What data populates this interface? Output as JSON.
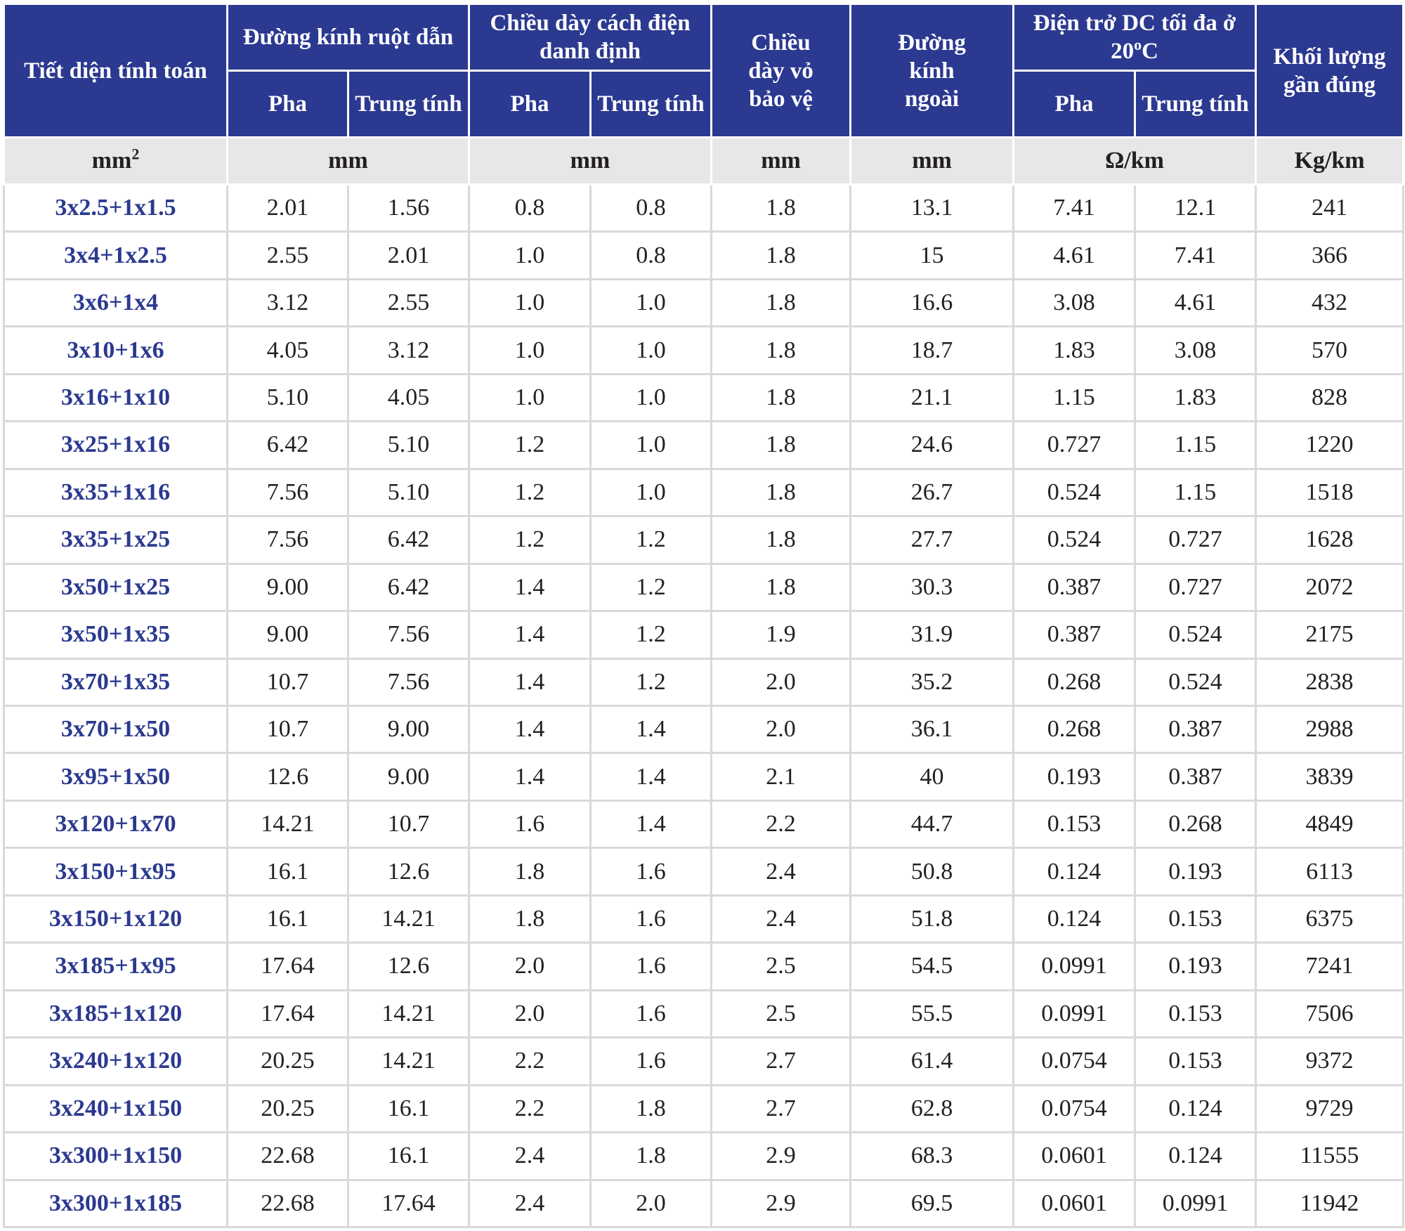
{
  "header": {
    "cross_section": "Tiết diện tính toán",
    "conductor_diameter": "Đường kính ruột dẫn",
    "insulation_thickness": "Chiều dày cách điện danh định",
    "sheath_thickness": "Chiều dày vỏ bảo vệ",
    "outer_diameter": "Đường kính ngoài",
    "dc_resistance_prefix": "Điện trở DC tối đa ở 20",
    "dc_resistance_sup": "o",
    "dc_resistance_suffix": "C",
    "approx_weight": "Khối lượng gần đúng",
    "phase": "Pha",
    "neutral": "Trung tính"
  },
  "units": {
    "cross_section_base": "mm",
    "cross_section_sup": "2",
    "conductor_diameter": "mm",
    "insulation_thickness": "mm",
    "sheath_thickness": "mm",
    "outer_diameter": "mm",
    "dc_resistance": "Ω/km",
    "approx_weight": "Kg/km"
  },
  "rows": [
    [
      "3x2.5+1x1.5",
      "2.01",
      "1.56",
      "0.8",
      "0.8",
      "1.8",
      "13.1",
      "7.41",
      "12.1",
      "241"
    ],
    [
      "3x4+1x2.5",
      "2.55",
      "2.01",
      "1.0",
      "0.8",
      "1.8",
      "15",
      "4.61",
      "7.41",
      "366"
    ],
    [
      "3x6+1x4",
      "3.12",
      "2.55",
      "1.0",
      "1.0",
      "1.8",
      "16.6",
      "3.08",
      "4.61",
      "432"
    ],
    [
      "3x10+1x6",
      "4.05",
      "3.12",
      "1.0",
      "1.0",
      "1.8",
      "18.7",
      "1.83",
      "3.08",
      "570"
    ],
    [
      "3x16+1x10",
      "5.10",
      "4.05",
      "1.0",
      "1.0",
      "1.8",
      "21.1",
      "1.15",
      "1.83",
      "828"
    ],
    [
      "3x25+1x16",
      "6.42",
      "5.10",
      "1.2",
      "1.0",
      "1.8",
      "24.6",
      "0.727",
      "1.15",
      "1220"
    ],
    [
      "3x35+1x16",
      "7.56",
      "5.10",
      "1.2",
      "1.0",
      "1.8",
      "26.7",
      "0.524",
      "1.15",
      "1518"
    ],
    [
      "3x35+1x25",
      "7.56",
      "6.42",
      "1.2",
      "1.2",
      "1.8",
      "27.7",
      "0.524",
      "0.727",
      "1628"
    ],
    [
      "3x50+1x25",
      "9.00",
      "6.42",
      "1.4",
      "1.2",
      "1.8",
      "30.3",
      "0.387",
      "0.727",
      "2072"
    ],
    [
      "3x50+1x35",
      "9.00",
      "7.56",
      "1.4",
      "1.2",
      "1.9",
      "31.9",
      "0.387",
      "0.524",
      "2175"
    ],
    [
      "3x70+1x35",
      "10.7",
      "7.56",
      "1.4",
      "1.2",
      "2.0",
      "35.2",
      "0.268",
      "0.524",
      "2838"
    ],
    [
      "3x70+1x50",
      "10.7",
      "9.00",
      "1.4",
      "1.4",
      "2.0",
      "36.1",
      "0.268",
      "0.387",
      "2988"
    ],
    [
      "3x95+1x50",
      "12.6",
      "9.00",
      "1.4",
      "1.4",
      "2.1",
      "40",
      "0.193",
      "0.387",
      "3839"
    ],
    [
      "3x120+1x70",
      "14.21",
      "10.7",
      "1.6",
      "1.4",
      "2.2",
      "44.7",
      "0.153",
      "0.268",
      "4849"
    ],
    [
      "3x150+1x95",
      "16.1",
      "12.6",
      "1.8",
      "1.6",
      "2.4",
      "50.8",
      "0.124",
      "0.193",
      "6113"
    ],
    [
      "3x150+1x120",
      "16.1",
      "14.21",
      "1.8",
      "1.6",
      "2.4",
      "51.8",
      "0.124",
      "0.153",
      "6375"
    ],
    [
      "3x185+1x95",
      "17.64",
      "12.6",
      "2.0",
      "1.6",
      "2.5",
      "54.5",
      "0.0991",
      "0.193",
      "7241"
    ],
    [
      "3x185+1x120",
      "17.64",
      "14.21",
      "2.0",
      "1.6",
      "2.5",
      "55.5",
      "0.0991",
      "0.153",
      "7506"
    ],
    [
      "3x240+1x120",
      "20.25",
      "14.21",
      "2.2",
      "1.6",
      "2.7",
      "61.4",
      "0.0754",
      "0.153",
      "9372"
    ],
    [
      "3x240+1x150",
      "20.25",
      "16.1",
      "2.2",
      "1.8",
      "2.7",
      "62.8",
      "0.0754",
      "0.124",
      "9729"
    ],
    [
      "3x300+1x150",
      "22.68",
      "16.1",
      "2.4",
      "1.8",
      "2.9",
      "68.3",
      "0.0601",
      "0.124",
      "11555"
    ],
    [
      "3x300+1x185",
      "22.68",
      "17.64",
      "2.4",
      "2.0",
      "2.9",
      "69.5",
      "0.0601",
      "0.0991",
      "11942"
    ]
  ],
  "colors": {
    "header_bg": "#2b3990",
    "header_text": "#ffffff",
    "units_bg": "#e7e7e8",
    "section_text": "#2b3990",
    "body_text": "#231f20",
    "grid": "#d9d9da"
  }
}
